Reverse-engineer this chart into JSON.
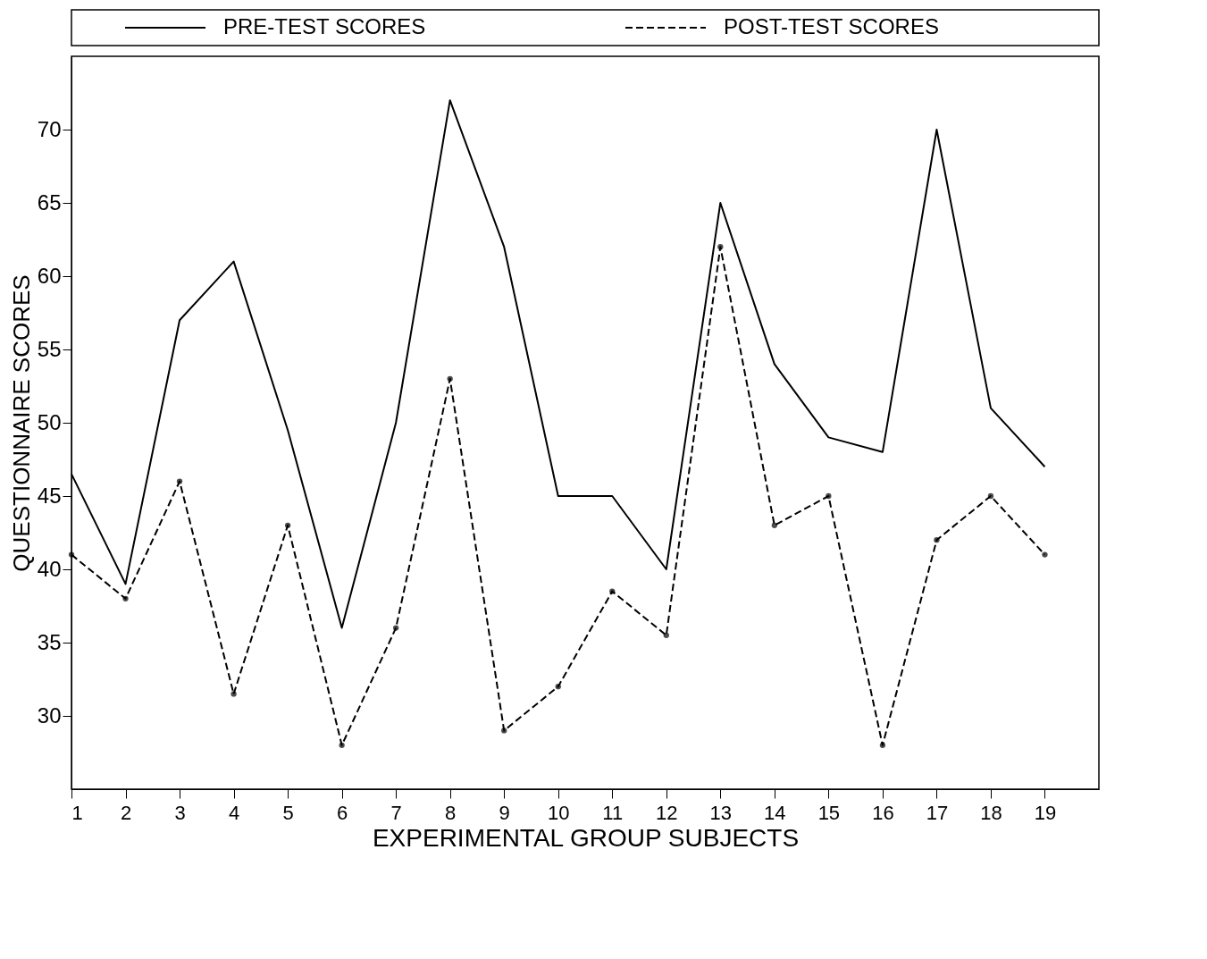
{
  "chart_data": {
    "type": "line",
    "xlabel": "EXPERIMENTAL GROUP SUBJECTS",
    "ylabel": "QUESTIONNAIRE SCORES",
    "x": [
      1,
      2,
      3,
      4,
      5,
      6,
      7,
      8,
      9,
      10,
      11,
      12,
      13,
      14,
      15,
      16,
      17,
      18,
      19
    ],
    "series": [
      {
        "name": "PRE-TEST SCORES",
        "color": "#000000",
        "line_style": "solid",
        "marker": "none",
        "values": [
          46.5,
          39,
          57,
          61,
          49.5,
          36,
          50,
          72,
          62,
          45,
          45,
          40,
          65,
          54,
          49,
          48,
          70,
          51,
          47
        ]
      },
      {
        "name": "POST-TEST SCORES",
        "color": "#000000",
        "line_style": "dashed",
        "marker": "circle",
        "values": [
          41,
          38,
          46,
          31.5,
          43,
          28,
          36,
          53,
          29,
          32,
          38.5,
          35.5,
          62,
          43,
          45,
          28,
          42,
          45,
          41
        ]
      }
    ],
    "xlim": [
      1,
      20
    ],
    "xticks": [
      1,
      2,
      3,
      4,
      5,
      6,
      7,
      8,
      9,
      10,
      11,
      12,
      13,
      14,
      15,
      16,
      17,
      18,
      19
    ],
    "ylim": [
      25,
      75
    ],
    "yticks": [
      30,
      35,
      40,
      45,
      50,
      55,
      60,
      65,
      70
    ],
    "grid": false,
    "legend": "top"
  }
}
